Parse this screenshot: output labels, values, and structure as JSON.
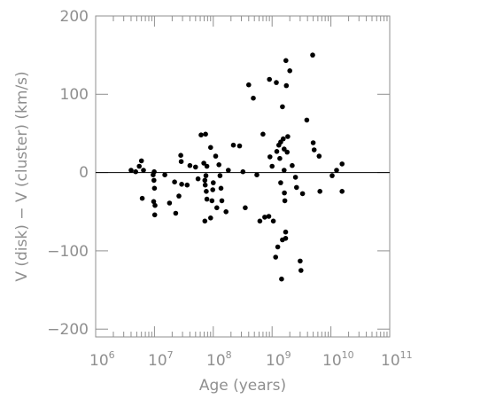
{
  "chart_data": {
    "type": "scatter",
    "title": "",
    "xlabel": "Age (years)",
    "ylabel": "V (disk) − V (cluster) (km/s)",
    "xscale": "log",
    "xlim": [
      1000000,
      100000000000
    ],
    "ylim": [
      -210,
      200
    ],
    "x_ticks": [
      {
        "base": "10",
        "exp": "6"
      },
      {
        "base": "10",
        "exp": "7"
      },
      {
        "base": "10",
        "exp": "8"
      },
      {
        "base": "10",
        "exp": "9"
      },
      {
        "base": "10",
        "exp": "10"
      },
      {
        "base": "10",
        "exp": "11"
      }
    ],
    "y_ticks": [
      "200",
      "100",
      "0",
      "−100",
      "−200"
    ],
    "y_tick_values": [
      200,
      100,
      0,
      -100,
      -200
    ],
    "reference_line_y": 0,
    "grid": false,
    "marker_color": "#000000",
    "axis_color": "#8f8f8f",
    "points": [
      {
        "x": 4000000,
        "y": 3
      },
      {
        "x": 4800000,
        "y": 1
      },
      {
        "x": 5500000,
        "y": 8
      },
      {
        "x": 6000000,
        "y": 15
      },
      {
        "x": 6500000,
        "y": 3
      },
      {
        "x": 6200000,
        "y": -33
      },
      {
        "x": 9500000,
        "y": -3
      },
      {
        "x": 9800000,
        "y": -10
      },
      {
        "x": 9900000,
        "y": 1
      },
      {
        "x": 10000000,
        "y": -20
      },
      {
        "x": 9700000,
        "y": -37
      },
      {
        "x": 10200000,
        "y": -42
      },
      {
        "x": 10100000,
        "y": -54
      },
      {
        "x": 15000000,
        "y": -3
      },
      {
        "x": 18000000,
        "y": -39
      },
      {
        "x": 22000000,
        "y": -12
      },
      {
        "x": 23000000,
        "y": -52
      },
      {
        "x": 28000000,
        "y": 22
      },
      {
        "x": 28500000,
        "y": 14
      },
      {
        "x": 29000000,
        "y": -15
      },
      {
        "x": 26000000,
        "y": -30
      },
      {
        "x": 36000000,
        "y": -16
      },
      {
        "x": 40000000,
        "y": 9
      },
      {
        "x": 50000000,
        "y": 7
      },
      {
        "x": 55000000,
        "y": -8
      },
      {
        "x": 62000000,
        "y": 48
      },
      {
        "x": 69000000,
        "y": 12
      },
      {
        "x": 74000000,
        "y": 49
      },
      {
        "x": 75000000,
        "y": -4
      },
      {
        "x": 72000000,
        "y": -10
      },
      {
        "x": 73000000,
        "y": -16
      },
      {
        "x": 76000000,
        "y": -24
      },
      {
        "x": 78000000,
        "y": -34
      },
      {
        "x": 72000000,
        "y": -62
      },
      {
        "x": 78000000,
        "y": 8
      },
      {
        "x": 90000000,
        "y": 32
      },
      {
        "x": 90000000,
        "y": -58
      },
      {
        "x": 95000000,
        "y": -36
      },
      {
        "x": 98000000,
        "y": -22
      },
      {
        "x": 100000000,
        "y": -13
      },
      {
        "x": 110000000,
        "y": 21
      },
      {
        "x": 115000000,
        "y": -45
      },
      {
        "x": 125000000,
        "y": 10
      },
      {
        "x": 130000000,
        "y": -4
      },
      {
        "x": 135000000,
        "y": -20
      },
      {
        "x": 140000000,
        "y": -36
      },
      {
        "x": 165000000,
        "y": -50
      },
      {
        "x": 180000000,
        "y": 3
      },
      {
        "x": 220000000,
        "y": 35
      },
      {
        "x": 280000000,
        "y": 34
      },
      {
        "x": 320000000,
        "y": 1
      },
      {
        "x": 350000000,
        "y": -45
      },
      {
        "x": 400000000,
        "y": 112
      },
      {
        "x": 480000000,
        "y": 95
      },
      {
        "x": 550000000,
        "y": -3
      },
      {
        "x": 620000000,
        "y": -62
      },
      {
        "x": 700000000,
        "y": 49
      },
      {
        "x": 750000000,
        "y": -57
      },
      {
        "x": 880000000,
        "y": -56
      },
      {
        "x": 900000000,
        "y": 119
      },
      {
        "x": 920000000,
        "y": 20
      },
      {
        "x": 1000000000,
        "y": 8
      },
      {
        "x": 1050000000,
        "y": -62
      },
      {
        "x": 1150000000,
        "y": -108
      },
      {
        "x": 1180000000,
        "y": 115
      },
      {
        "x": 1200000000,
        "y": 27
      },
      {
        "x": 1250000000,
        "y": -95
      },
      {
        "x": 1300000000,
        "y": 35
      },
      {
        "x": 1350000000,
        "y": 18
      },
      {
        "x": 1400000000,
        "y": -13
      },
      {
        "x": 1400000000,
        "y": 39
      },
      {
        "x": 1500000000,
        "y": -86
      },
      {
        "x": 1450000000,
        "y": -136
      },
      {
        "x": 1500000000,
        "y": 84
      },
      {
        "x": 1550000000,
        "y": 43
      },
      {
        "x": 1600000000,
        "y": 30
      },
      {
        "x": 1600000000,
        "y": 3
      },
      {
        "x": 1620000000,
        "y": -26
      },
      {
        "x": 1650000000,
        "y": -36
      },
      {
        "x": 1700000000,
        "y": -84
      },
      {
        "x": 1700000000,
        "y": -76
      },
      {
        "x": 1720000000,
        "y": 143
      },
      {
        "x": 1750000000,
        "y": 111
      },
      {
        "x": 1800000000,
        "y": 26
      },
      {
        "x": 1850000000,
        "y": 46
      },
      {
        "x": 2000000000,
        "y": 130
      },
      {
        "x": 2200000000,
        "y": 9
      },
      {
        "x": 2500000000,
        "y": -6
      },
      {
        "x": 2600000000,
        "y": -19
      },
      {
        "x": 3000000000,
        "y": -113
      },
      {
        "x": 3100000000,
        "y": -125
      },
      {
        "x": 3300000000,
        "y": -27
      },
      {
        "x": 3900000000,
        "y": 67
      },
      {
        "x": 4900000000,
        "y": 150
      },
      {
        "x": 5000000000,
        "y": 38
      },
      {
        "x": 5200000000,
        "y": 29
      },
      {
        "x": 6300000000,
        "y": 21
      },
      {
        "x": 6500000000,
        "y": -24
      },
      {
        "x": 10500000000,
        "y": -4
      },
      {
        "x": 12500000000,
        "y": 3
      },
      {
        "x": 15500000000,
        "y": 11
      },
      {
        "x": 15500000000,
        "y": -24
      }
    ]
  }
}
